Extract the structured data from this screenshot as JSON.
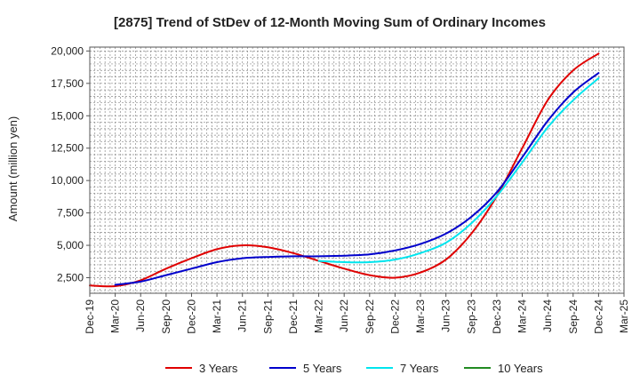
{
  "chart_data": {
    "type": "line",
    "title": "[2875]  Trend of StDev of 12-Month Moving Sum of Ordinary Incomes",
    "xlabel": "",
    "ylabel": "Amount (million yen)",
    "ylim": [
      1300,
      20300
    ],
    "yticks": [
      2500,
      5000,
      7500,
      10000,
      12500,
      15000,
      17500,
      20000
    ],
    "ytick_labels": [
      "2,500",
      "5,000",
      "7,500",
      "10,000",
      "12,500",
      "15,000",
      "17,500",
      "20,000"
    ],
    "categories": [
      "Dec-19",
      "Mar-20",
      "Jun-20",
      "Sep-20",
      "Dec-20",
      "Mar-21",
      "Jun-21",
      "Sep-21",
      "Dec-21",
      "Mar-22",
      "Jun-22",
      "Sep-22",
      "Dec-22",
      "Mar-23",
      "Jun-23",
      "Sep-23",
      "Dec-23",
      "Mar-24",
      "Jun-24",
      "Sep-24",
      "Dec-24",
      "Mar-25"
    ],
    "grid": true,
    "legend_position": "bottom",
    "series": [
      {
        "name": "3 Years",
        "color": "#e00000",
        "values": [
          1900,
          1850,
          2300,
          3200,
          4000,
          4700,
          5000,
          4850,
          4400,
          3800,
          3200,
          2700,
          2500,
          2900,
          3900,
          5900,
          8800,
          12500,
          16200,
          18500,
          19800,
          null
        ]
      },
      {
        "name": "5 Years",
        "color": "#0000cc",
        "values": [
          null,
          1950,
          2200,
          2700,
          3200,
          3700,
          4000,
          4100,
          4150,
          4150,
          4200,
          4300,
          4600,
          5100,
          5900,
          7200,
          9100,
          11800,
          14600,
          16800,
          18300,
          null
        ]
      },
      {
        "name": "7 Years",
        "color": "#00e5ee",
        "values": [
          null,
          null,
          null,
          null,
          null,
          null,
          null,
          null,
          null,
          3800,
          3700,
          3700,
          3900,
          4400,
          5200,
          6700,
          8800,
          11400,
          14100,
          16200,
          17900,
          null
        ]
      },
      {
        "name": "10 Years",
        "color": "#228b22",
        "values": [
          null,
          null,
          null,
          null,
          null,
          null,
          null,
          null,
          null,
          null,
          null,
          null,
          null,
          null,
          null,
          null,
          null,
          null,
          null,
          null,
          null,
          null
        ]
      }
    ]
  }
}
